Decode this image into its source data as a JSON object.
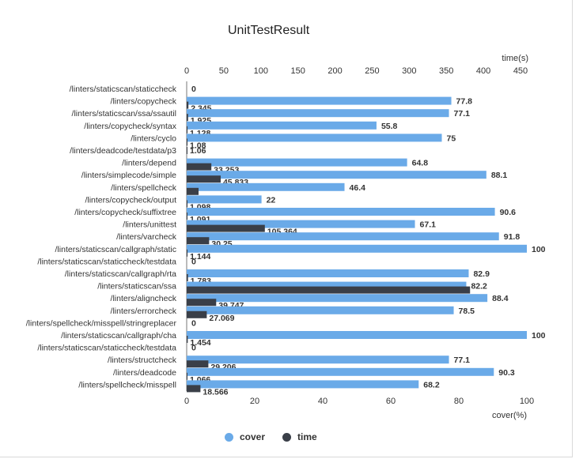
{
  "chart_data": {
    "type": "bar",
    "title": "UnitTestResult",
    "orientation": "horizontal",
    "colors": {
      "cover": "#6aaae8",
      "time": "#3a3f48",
      "axis": "#333333",
      "frame": "#d9d9d9"
    },
    "categories": [
      "/linters/staticscan/staticcheck",
      "/linters/copycheck",
      "/linters/staticscan/ssa/ssautil",
      "/linters/copycheck/syntax",
      "/linters/cyclo",
      "/linters/deadcode/testdata/p3",
      "/linters/depend",
      "/linters/simplecode/simple",
      "/linters/spellcheck",
      "/linters/copycheck/output",
      "/linters/copycheck/suffixtree",
      "/linters/unittest",
      "/linters/varcheck",
      "/linters/staticscan/callgraph/static",
      "/linters/staticscan/staticcheck/testdata",
      "/linters/staticscan/callgraph/rta",
      "/linters/staticscan/ssa",
      "/linters/aligncheck",
      "/linters/errorcheck",
      "/linters/spellcheck/misspell/stringreplacer",
      "/linters/staticscan/callgraph/cha",
      "/linters/staticscan/staticcheck/testdata",
      "/linters/structcheck",
      "/linters/deadcode",
      "/linters/spellcheck/misspell"
    ],
    "series": [
      {
        "name": "cover",
        "axis": "bottom",
        "values": [
          null,
          77.8,
          77.1,
          55.8,
          75,
          null,
          64.8,
          88.1,
          46.4,
          22,
          90.6,
          67.1,
          91.8,
          100,
          null,
          82.9,
          82.2,
          88.4,
          78.5,
          null,
          100,
          null,
          77.1,
          90.3,
          68.2
        ]
      },
      {
        "name": "time",
        "axis": "top",
        "values": [
          0,
          2.345,
          1.925,
          1.128,
          1.08,
          1.06,
          33.253,
          45.833,
          16,
          1.098,
          1.091,
          105.364,
          30.25,
          1.144,
          0,
          1.783,
          382,
          39.747,
          27.069,
          0,
          1.454,
          0,
          29.206,
          1.066,
          18.566
        ],
        "labels": [
          "0",
          "2.345",
          "1.925",
          "1.128",
          "1.08",
          "1.06",
          "33.253",
          "45.833",
          "",
          "1.098",
          "1.091",
          "105.364",
          "30.25",
          "1.144",
          "0",
          "1.783",
          "",
          "39.747",
          "27.069",
          "0",
          "1.454",
          "0",
          "29.206",
          "1.066",
          "18.566"
        ]
      }
    ],
    "x_bottom": {
      "label": "cover(%)",
      "range": [
        0,
        100
      ],
      "ticks": [
        0,
        20,
        40,
        60,
        80,
        100
      ]
    },
    "x_top": {
      "label": "time(s)",
      "range": [
        0,
        450
      ],
      "ticks": [
        0,
        50,
        100,
        150,
        200,
        250,
        300,
        350,
        400,
        450
      ]
    },
    "legend": {
      "position": "bottom",
      "items": [
        "cover",
        "time"
      ]
    },
    "grid": false
  }
}
